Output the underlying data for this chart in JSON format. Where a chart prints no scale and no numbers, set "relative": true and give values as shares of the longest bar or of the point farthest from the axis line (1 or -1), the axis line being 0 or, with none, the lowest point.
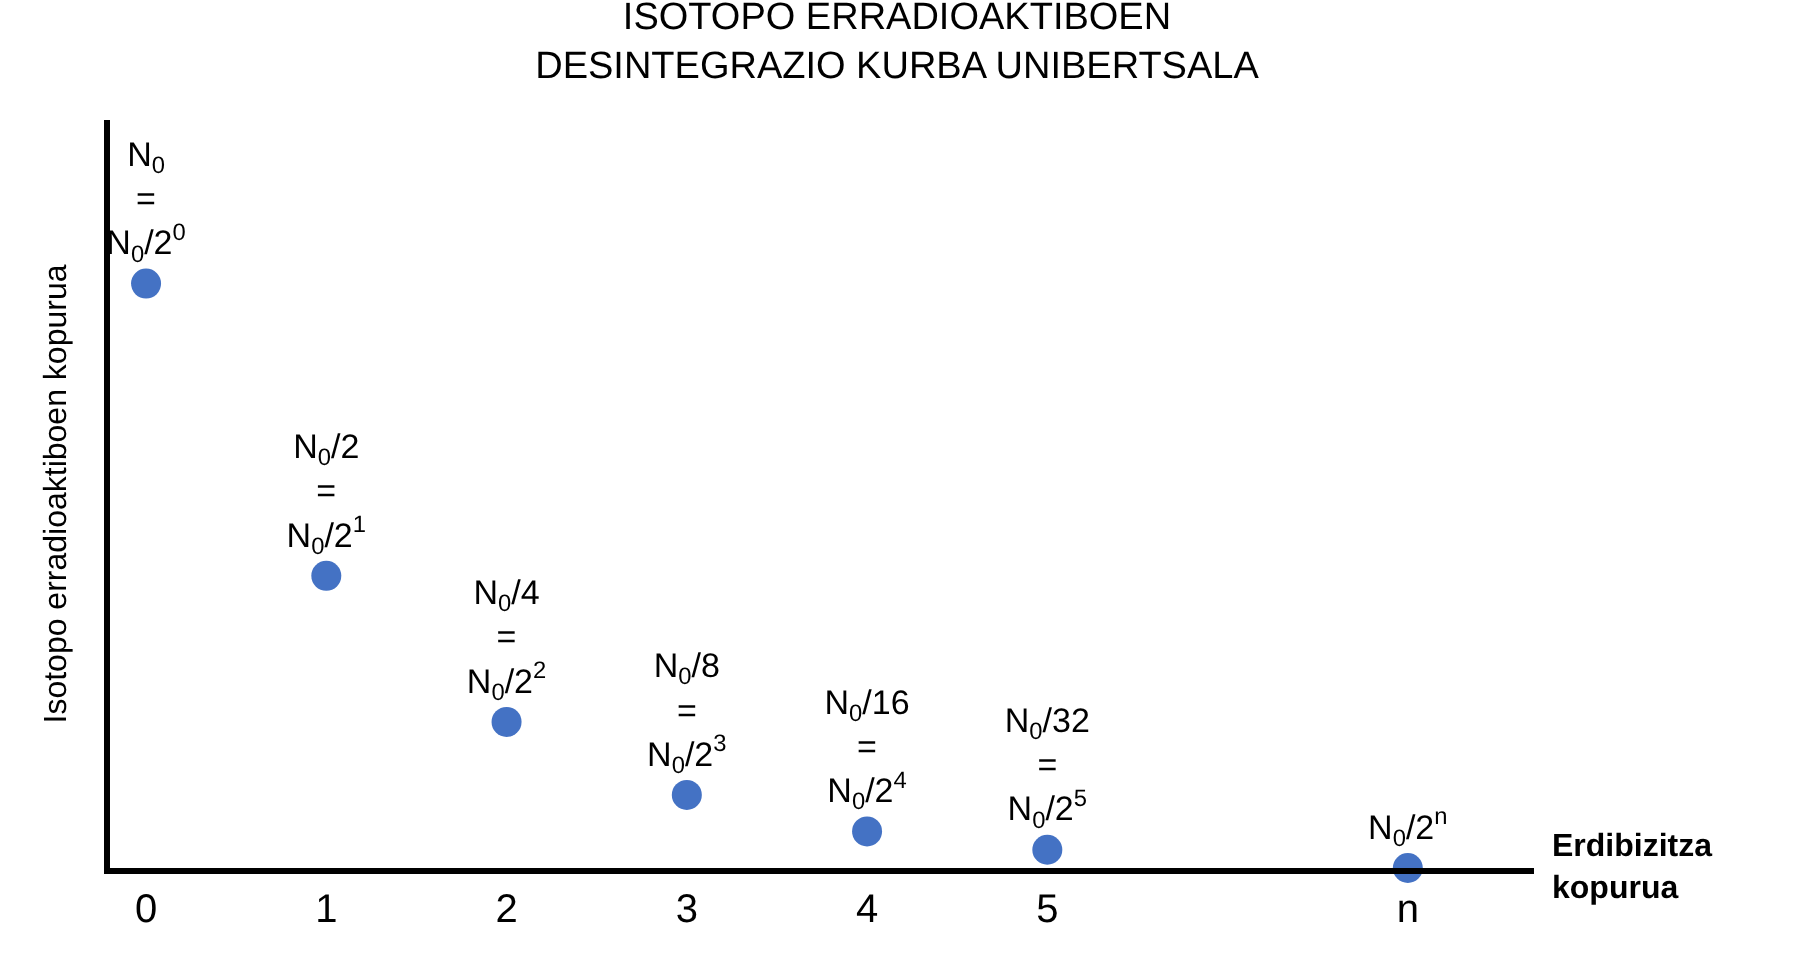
{
  "chart_data": {
    "type": "scatter",
    "title": "ISOTOPO ERRADIOAKTIBOEN\nDESINTEGRAZIO KURBA UNIBERTSALA",
    "xlabel": "Erdibizitza\nkopurua",
    "ylabel": "Isotopo erradioaktiboen kopurua",
    "relative": true,
    "categories": [
      "0",
      "1",
      "2",
      "3",
      "4",
      "5",
      null,
      "n"
    ],
    "series": [
      {
        "color": "#4472c4",
        "values": [
          1,
          0.5,
          0.25,
          0.125,
          0.0625,
          0.03125,
          null,
          0
        ]
      }
    ],
    "value_labels": [
      "N$_{0}$\n=\nN$_{0}$/2$^{0}$",
      "N$_{0}$/2\n=\nN$_{0}$/2$^{1}$",
      "N$_{0}$/4\n=\nN$_{0}$/2$^{2}$",
      "N$_{0}$/8\n=\nN$_{0}$/2$^{3}$",
      "N$_{0}$/16\n=\nN$_{0}$/2$^{4}$",
      "N$_{0}$/32\n=\nN$_{0}$/2$^{5}$",
      null,
      "N$_{0}$/2$^{n}$"
    ],
    "marker": "circle"
  }
}
